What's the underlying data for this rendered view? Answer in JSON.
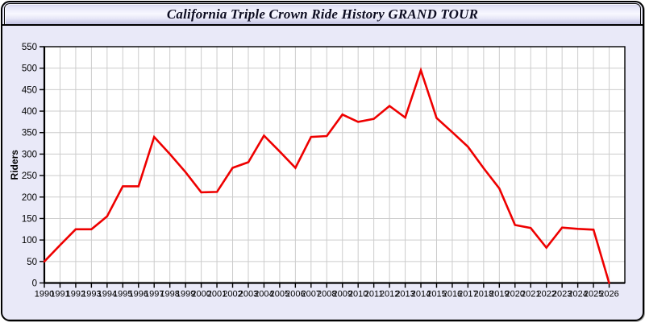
{
  "window": {
    "title": "California Triple Crown Ride History GRAND TOUR"
  },
  "colors": {
    "body_background": "#e9e9f8",
    "titlebar_gradient_top": "#c9c9ea",
    "titlebar_gradient_middle": "#f8f8ff",
    "titlebar_gradient_bottom": "#c3c3e3",
    "plot_background": "#ffffff",
    "gridline": "#cccccc",
    "axis": "#000000",
    "series_line": "#ee0000",
    "tick_label": "#000000"
  },
  "chart_data": {
    "type": "line",
    "title": "California Triple Crown Ride History GRAND TOUR",
    "xlabel": "",
    "ylabel": "Riders",
    "x": [
      1990,
      1991,
      1992,
      1993,
      1994,
      1995,
      1996,
      1997,
      1998,
      1999,
      2000,
      2001,
      2002,
      2003,
      2004,
      2005,
      2006,
      2007,
      2008,
      2009,
      2010,
      2011,
      2012,
      2013,
      2014,
      2015,
      2016,
      2017,
      2018,
      2019,
      2020,
      2021,
      2022,
      2023,
      2024,
      2025,
      2026
    ],
    "series": [
      {
        "name": "Riders",
        "values": [
          50,
          88,
          125,
          125,
          155,
          225,
          225,
          340,
          300,
          258,
          211,
          212,
          268,
          281,
          343,
          306,
          268,
          340,
          342,
          392,
          375,
          382,
          412,
          385,
          495,
          384,
          351,
          317,
          267,
          220,
          135,
          128,
          82,
          129,
          126,
          124,
          0
        ]
      }
    ],
    "ylim": [
      0,
      550
    ],
    "ytick_interval": 50,
    "grid": true,
    "legend": false,
    "line_color": "#ee0000"
  }
}
